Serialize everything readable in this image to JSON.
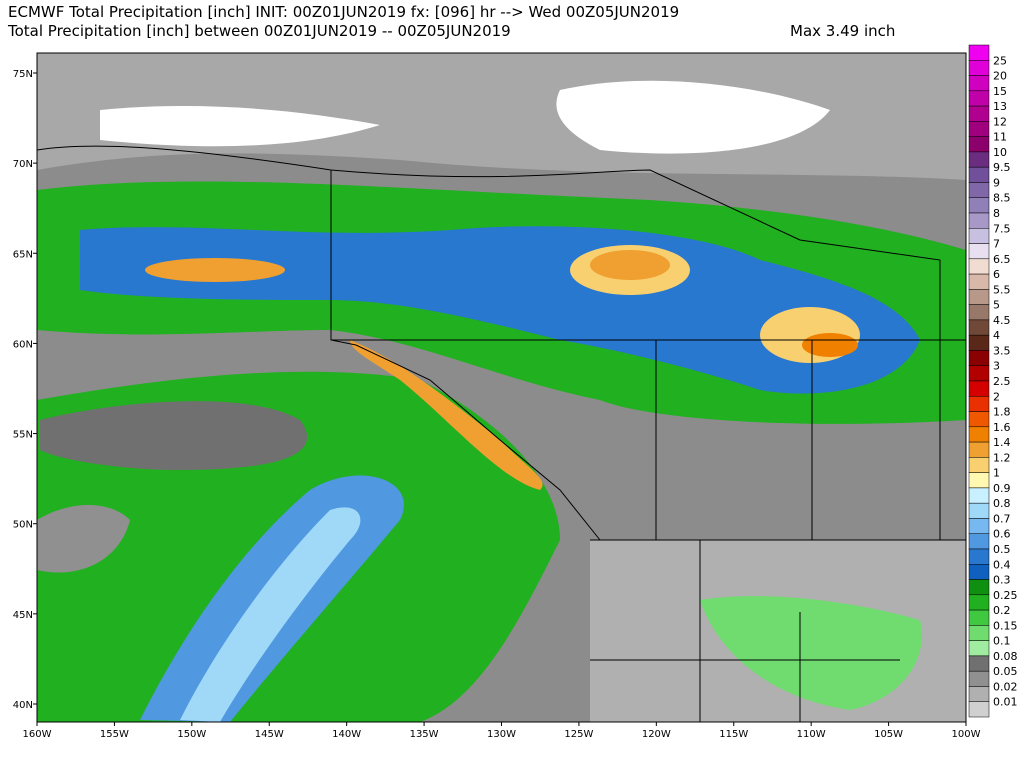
{
  "header": {
    "line1": "ECMWF Total Precipitation [inch] INIT: 00Z01JUN2019 fx: [096] hr --> Wed 00Z05JUN2019",
    "line2": "Total Precipitation [inch] between 00Z01JUN2019 -- 00Z05JUN2019",
    "max": "Max 3.49 inch"
  },
  "latitude_labels": [
    "75N",
    "70N",
    "65N",
    "60N",
    "55N",
    "50N",
    "45N",
    "40N"
  ],
  "longitude_labels": [
    "160W",
    "155W",
    "150W",
    "145W",
    "140W",
    "135W",
    "130W",
    "125W",
    "120W",
    "115W",
    "110W",
    "105W",
    "100W"
  ],
  "colorbar": {
    "labels": [
      "25",
      "20",
      "15",
      "13",
      "12",
      "11",
      "10",
      "9.5",
      "9",
      "8.5",
      "8",
      "7.5",
      "7",
      "6.5",
      "6",
      "5.5",
      "5",
      "4.5",
      "4",
      "3.5",
      "3",
      "2.5",
      "2",
      "1.8",
      "1.6",
      "1.4",
      "1.2",
      "1",
      "0.9",
      "0.8",
      "0.7",
      "0.6",
      "0.5",
      "0.4",
      "0.3",
      "0.25",
      "0.2",
      "0.15",
      "0.1",
      "0.08",
      "0.05",
      "0.02",
      "0.01"
    ],
    "colors": [
      "#f000f0",
      "#e000d8",
      "#d000c0",
      "#c000a8",
      "#b00090",
      "#a0007e",
      "#8c006c",
      "#6a2d80",
      "#70509a",
      "#8068a8",
      "#9080b8",
      "#a898c8",
      "#c8c0e0",
      "#e8e0f0",
      "#f0dcd0",
      "#d8b8a8",
      "#b89888",
      "#987868",
      "#704838",
      "#5a2818",
      "#8b0000",
      "#b00000",
      "#d40000",
      "#e83000",
      "#f05800",
      "#f08000",
      "#f0a030",
      "#f8d070",
      "#fff8b0",
      "#c8f0ff",
      "#a0d8f8",
      "#78b8f0",
      "#5098e0",
      "#2878d0",
      "#1060c0",
      "#109010",
      "#20b020",
      "#40c840",
      "#70dc70",
      "#a0eca0",
      "#707070",
      "#909090",
      "#b0b0b0",
      "#d0d0d0"
    ]
  }
}
